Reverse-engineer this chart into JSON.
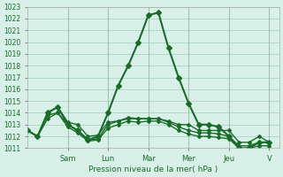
{
  "title": "",
  "xlabel": "Pression niveau de la mer( hPa )",
  "ylabel": "",
  "bg_color": "#d8f0e8",
  "grid_color": "#b0d8c8",
  "line_color": "#1a6b2a",
  "ylim": [
    1011,
    1023
  ],
  "yticks": [
    1011,
    1012,
    1013,
    1014,
    1015,
    1016,
    1017,
    1018,
    1019,
    1020,
    1021,
    1022,
    1023
  ],
  "day_labels": [
    "Sam",
    "Lun",
    "Mar",
    "Mer",
    "Jeu",
    "V"
  ],
  "day_positions": [
    2.0,
    4.0,
    6.0,
    8.0,
    10.0,
    12.0
  ],
  "series": [
    [
      1012.5,
      1012.0,
      1014.0,
      1014.5,
      1013.0,
      1012.5,
      1011.7,
      1012.0,
      1014.0,
      1016.3,
      1018.0,
      1020.0,
      1022.3,
      1022.5,
      1019.5,
      1017.0,
      1014.8,
      1013.0,
      1013.0,
      1012.8,
      1012.0,
      1011.0,
      1011.0,
      1011.5,
      1011.5
    ],
    [
      1012.5,
      1012.0,
      1014.0,
      1014.5,
      1013.2,
      1013.0,
      1012.0,
      1012.1,
      1013.2,
      1013.3,
      1013.5,
      1013.5,
      1013.5,
      1013.5,
      1013.3,
      1013.0,
      1013.0,
      1012.5,
      1012.5,
      1012.5,
      1012.5,
      1011.5,
      1011.5,
      1012.0,
      1011.5
    ],
    [
      1012.5,
      1012.0,
      1013.8,
      1014.0,
      1013.0,
      1012.5,
      1011.7,
      1011.8,
      1013.0,
      1013.3,
      1013.6,
      1013.5,
      1013.5,
      1013.5,
      1013.2,
      1012.8,
      1012.5,
      1012.3,
      1012.3,
      1012.2,
      1012.0,
      1011.2,
      1011.2,
      1011.5,
      1011.5
    ],
    [
      1012.5,
      1012.0,
      1013.5,
      1014.0,
      1012.8,
      1012.3,
      1011.6,
      1011.7,
      1012.7,
      1013.0,
      1013.3,
      1013.2,
      1013.3,
      1013.3,
      1013.0,
      1012.5,
      1012.2,
      1012.0,
      1012.0,
      1011.9,
      1011.8,
      1011.0,
      1011.0,
      1011.2,
      1011.2
    ]
  ]
}
